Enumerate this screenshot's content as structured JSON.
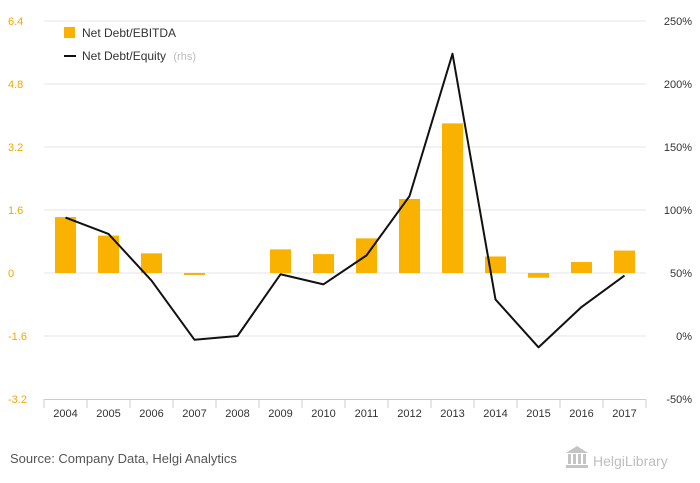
{
  "chart_data": {
    "type": "bar",
    "categories": [
      "2004",
      "2005",
      "2006",
      "2007",
      "2008",
      "2009",
      "2010",
      "2011",
      "2012",
      "2013",
      "2014",
      "2015",
      "2016",
      "2017"
    ],
    "series": [
      {
        "name": "Net Debt/EBITDA",
        "chart_type": "bar",
        "axis": "left",
        "color": "#f9b200",
        "values": [
          1.42,
          0.95,
          0.5,
          -0.05,
          null,
          0.6,
          0.48,
          0.88,
          1.88,
          3.8,
          0.42,
          -0.12,
          0.28,
          0.57
        ]
      },
      {
        "name": "Net Debt/Equity",
        "chart_type": "line",
        "axis": "right",
        "color": "#111111",
        "values": [
          94,
          81,
          44,
          -3,
          0,
          49,
          41,
          64,
          111,
          224,
          29,
          -9,
          23,
          48
        ]
      }
    ],
    "left_axis": {
      "ticks": [
        "-3.2",
        "-1.6",
        "0",
        "1.6",
        "3.2",
        "4.8",
        "6.4"
      ],
      "min": -3.2,
      "max": 6.4
    },
    "right_axis": {
      "ticks": [
        "-50%",
        "0%",
        "50%",
        "100%",
        "150%",
        "200%",
        "250%"
      ],
      "min": -50,
      "max": 250
    },
    "legend": {
      "position": "top-left",
      "items": [
        {
          "label": "Net Debt/EBITDA",
          "note": ""
        },
        {
          "label": "Net Debt/Equity",
          "note": "(rhs)"
        }
      ]
    },
    "grid": true
  },
  "footer": {
    "source": "Source: Company Data, Helgi Analytics",
    "brand": "HelgiLibrary"
  }
}
